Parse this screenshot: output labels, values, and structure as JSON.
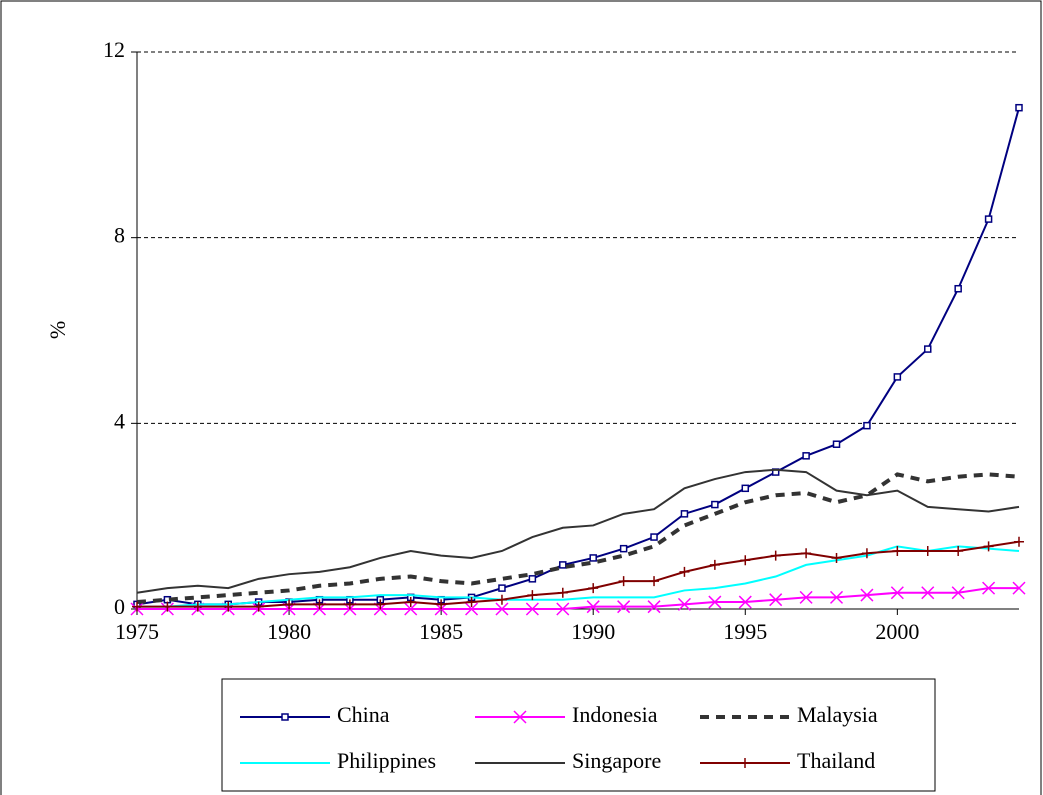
{
  "chart_data": {
    "type": "line",
    "y_label": "%",
    "x": [
      1975,
      1976,
      1977,
      1978,
      1979,
      1980,
      1981,
      1982,
      1983,
      1984,
      1985,
      1986,
      1987,
      1988,
      1989,
      1990,
      1991,
      1992,
      1993,
      1994,
      1995,
      1996,
      1997,
      1998,
      1999,
      2000,
      2001,
      2002,
      2003,
      2004
    ],
    "xlim": [
      1975,
      2004
    ],
    "xticks": [
      1975,
      1980,
      1985,
      1990,
      1995,
      2000
    ],
    "ylim": [
      0,
      12
    ],
    "yticks": [
      0,
      4,
      8,
      12
    ],
    "grid": true,
    "legend": "bottom",
    "series": [
      {
        "name": "China",
        "color": "#000080",
        "marker": "square",
        "dash": false,
        "values": [
          0.1,
          0.2,
          0.1,
          0.1,
          0.15,
          0.15,
          0.2,
          0.2,
          0.2,
          0.25,
          0.2,
          0.25,
          0.45,
          0.65,
          0.95,
          1.1,
          1.3,
          1.55,
          2.05,
          2.25,
          2.6,
          2.95,
          3.3,
          3.55,
          3.95,
          5.0,
          5.6,
          6.9,
          8.4,
          10.8
        ]
      },
      {
        "name": "Indonesia",
        "color": "#ff00ff",
        "marker": "x",
        "dash": false,
        "values": [
          0,
          0,
          0,
          0,
          0,
          0,
          0,
          0,
          0,
          0,
          0,
          0,
          0,
          0,
          0,
          0.05,
          0.05,
          0.05,
          0.1,
          0.15,
          0.15,
          0.2,
          0.25,
          0.25,
          0.3,
          0.35,
          0.35,
          0.35,
          0.45,
          0.45
        ]
      },
      {
        "name": "Malaysia",
        "color": "#333333",
        "marker": "none",
        "dash": true,
        "values": [
          0.15,
          0.2,
          0.25,
          0.3,
          0.35,
          0.4,
          0.5,
          0.55,
          0.65,
          0.7,
          0.6,
          0.55,
          0.65,
          0.75,
          0.9,
          1.0,
          1.15,
          1.35,
          1.8,
          2.05,
          2.3,
          2.45,
          2.5,
          2.3,
          2.45,
          2.9,
          2.75,
          2.85,
          2.9,
          2.85
        ]
      },
      {
        "name": "Philippines",
        "color": "#00ffff",
        "marker": "none",
        "dash": false,
        "values": [
          0.05,
          0.05,
          0.1,
          0.1,
          0.15,
          0.2,
          0.25,
          0.25,
          0.3,
          0.3,
          0.25,
          0.25,
          0.2,
          0.2,
          0.2,
          0.25,
          0.25,
          0.25,
          0.4,
          0.45,
          0.55,
          0.7,
          0.95,
          1.05,
          1.15,
          1.35,
          1.25,
          1.35,
          1.3,
          1.25
        ]
      },
      {
        "name": "Singapore",
        "color": "#333333",
        "marker": "none",
        "dash": false,
        "values": [
          0.35,
          0.45,
          0.5,
          0.45,
          0.65,
          0.75,
          0.8,
          0.9,
          1.1,
          1.25,
          1.15,
          1.1,
          1.25,
          1.55,
          1.75,
          1.8,
          2.05,
          2.15,
          2.6,
          2.8,
          2.95,
          3.0,
          2.95,
          2.55,
          2.45,
          2.55,
          2.2,
          2.15,
          2.1,
          2.2
        ]
      },
      {
        "name": "Thailand",
        "color": "#800000",
        "marker": "plus",
        "dash": false,
        "values": [
          0.05,
          0.05,
          0.05,
          0.05,
          0.05,
          0.1,
          0.1,
          0.1,
          0.1,
          0.15,
          0.1,
          0.15,
          0.2,
          0.3,
          0.35,
          0.45,
          0.6,
          0.6,
          0.8,
          0.95,
          1.05,
          1.15,
          1.2,
          1.1,
          1.2,
          1.25,
          1.25,
          1.25,
          1.35,
          1.45
        ]
      }
    ]
  }
}
